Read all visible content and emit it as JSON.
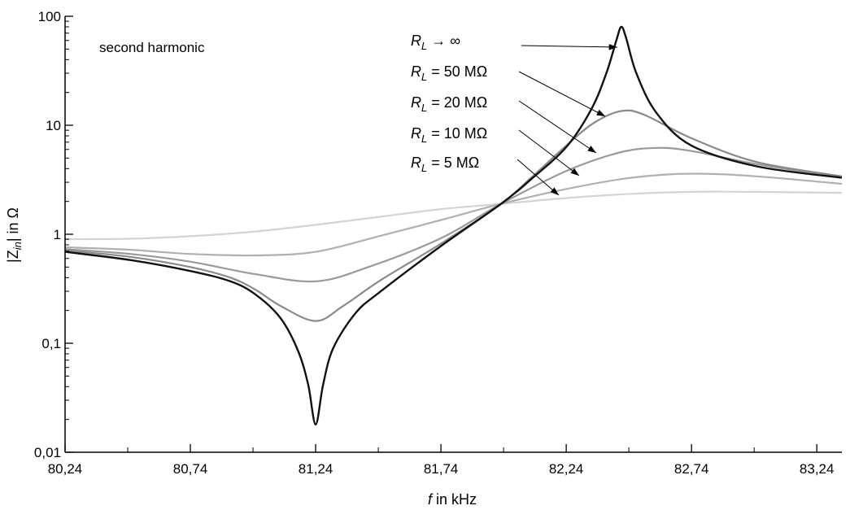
{
  "chart_data": {
    "type": "line",
    "annotation": "second harmonic",
    "xlabel": {
      "italic": "f",
      "rest": " in kHz"
    },
    "ylabel": {
      "pre": "|Z",
      "sub": "in",
      "post": "| in Ω"
    },
    "xscale": "linear",
    "yscale": "log",
    "xlim": [
      80.24,
      83.34
    ],
    "ylim": [
      0.01,
      100
    ],
    "x_ticks": [
      80.24,
      80.74,
      81.24,
      81.74,
      82.24,
      82.74,
      83.24
    ],
    "x_tick_labels": [
      "80,24",
      "80,74",
      "81,24",
      "81,74",
      "82,24",
      "82,74",
      "83,24"
    ],
    "y_ticks": [
      0.01,
      0.1,
      1,
      10,
      100
    ],
    "y_tick_labels": [
      "0,01",
      "0,1",
      "1",
      "10",
      "100"
    ],
    "grid": false,
    "legend_placement": "inline labels with arrows, top-center",
    "series": [
      {
        "name": "R_L → ∞",
        "label": {
          "main": "R",
          "sub": "L",
          "rest": " → ∞"
        },
        "color": "#111111",
        "points": [
          [
            80.24,
            0.69
          ],
          [
            80.5,
            0.58
          ],
          [
            80.74,
            0.46
          ],
          [
            80.9,
            0.37
          ],
          [
            81.0,
            0.28
          ],
          [
            81.1,
            0.17
          ],
          [
            81.17,
            0.085
          ],
          [
            81.21,
            0.042
          ],
          [
            81.24,
            0.018
          ],
          [
            81.27,
            0.042
          ],
          [
            81.31,
            0.09
          ],
          [
            81.4,
            0.19
          ],
          [
            81.5,
            0.3
          ],
          [
            81.74,
            0.78
          ],
          [
            81.98,
            1.9
          ],
          [
            82.1,
            3.2
          ],
          [
            82.24,
            6.3
          ],
          [
            82.34,
            14
          ],
          [
            82.4,
            30
          ],
          [
            82.44,
            60
          ],
          [
            82.46,
            80
          ],
          [
            82.48,
            62
          ],
          [
            82.52,
            30
          ],
          [
            82.6,
            13
          ],
          [
            82.74,
            6.5
          ],
          [
            83.0,
            4.2
          ],
          [
            83.34,
            3.3
          ]
        ]
      },
      {
        "name": "R_L = 50 MΩ",
        "label": {
          "main": "R",
          "sub": "L",
          "rest": " = 50 MΩ"
        },
        "color": "#8a8a8a",
        "points": [
          [
            80.24,
            0.71
          ],
          [
            80.5,
            0.62
          ],
          [
            80.74,
            0.5
          ],
          [
            80.9,
            0.4
          ],
          [
            81.0,
            0.31
          ],
          [
            81.1,
            0.22
          ],
          [
            81.24,
            0.16
          ],
          [
            81.35,
            0.22
          ],
          [
            81.5,
            0.38
          ],
          [
            81.74,
            0.82
          ],
          [
            81.98,
            1.9
          ],
          [
            82.1,
            3.3
          ],
          [
            82.24,
            6.5
          ],
          [
            82.35,
            10.5
          ],
          [
            82.46,
            13.5
          ],
          [
            82.55,
            12.5
          ],
          [
            82.74,
            7.6
          ],
          [
            83.0,
            4.6
          ],
          [
            83.34,
            3.4
          ]
        ]
      },
      {
        "name": "R_L = 20 MΩ",
        "label": {
          "main": "R",
          "sub": "L",
          "rest": " = 20 MΩ"
        },
        "color": "#9a9a9a",
        "points": [
          [
            80.24,
            0.73
          ],
          [
            80.5,
            0.66
          ],
          [
            80.74,
            0.56
          ],
          [
            81.0,
            0.43
          ],
          [
            81.24,
            0.37
          ],
          [
            81.45,
            0.5
          ],
          [
            81.74,
            0.92
          ],
          [
            81.98,
            1.9
          ],
          [
            82.24,
            3.8
          ],
          [
            82.45,
            5.6
          ],
          [
            82.6,
            6.2
          ],
          [
            82.74,
            5.8
          ],
          [
            83.0,
            4.4
          ],
          [
            83.34,
            3.3
          ]
        ]
      },
      {
        "name": "R_L = 10 MΩ",
        "label": {
          "main": "R",
          "sub": "L",
          "rest": " = 10 MΩ"
        },
        "color": "#b0b0b0",
        "points": [
          [
            80.24,
            0.76
          ],
          [
            80.5,
            0.72
          ],
          [
            80.74,
            0.66
          ],
          [
            81.0,
            0.64
          ],
          [
            81.24,
            0.69
          ],
          [
            81.5,
            0.97
          ],
          [
            81.74,
            1.35
          ],
          [
            81.98,
            1.9
          ],
          [
            82.24,
            2.6
          ],
          [
            82.5,
            3.3
          ],
          [
            82.74,
            3.6
          ],
          [
            83.0,
            3.4
          ],
          [
            83.34,
            2.9
          ]
        ]
      },
      {
        "name": "R_L = 5 MΩ",
        "label": {
          "main": "R",
          "sub": "L",
          "rest": " =   5 MΩ"
        },
        "color": "#d4d4d4",
        "points": [
          [
            80.24,
            0.9
          ],
          [
            80.5,
            0.91
          ],
          [
            80.74,
            0.96
          ],
          [
            81.0,
            1.06
          ],
          [
            81.24,
            1.22
          ],
          [
            81.5,
            1.45
          ],
          [
            81.74,
            1.7
          ],
          [
            81.98,
            1.9
          ],
          [
            82.24,
            2.15
          ],
          [
            82.5,
            2.35
          ],
          [
            82.74,
            2.45
          ],
          [
            83.0,
            2.45
          ],
          [
            83.34,
            2.4
          ]
        ]
      }
    ]
  }
}
